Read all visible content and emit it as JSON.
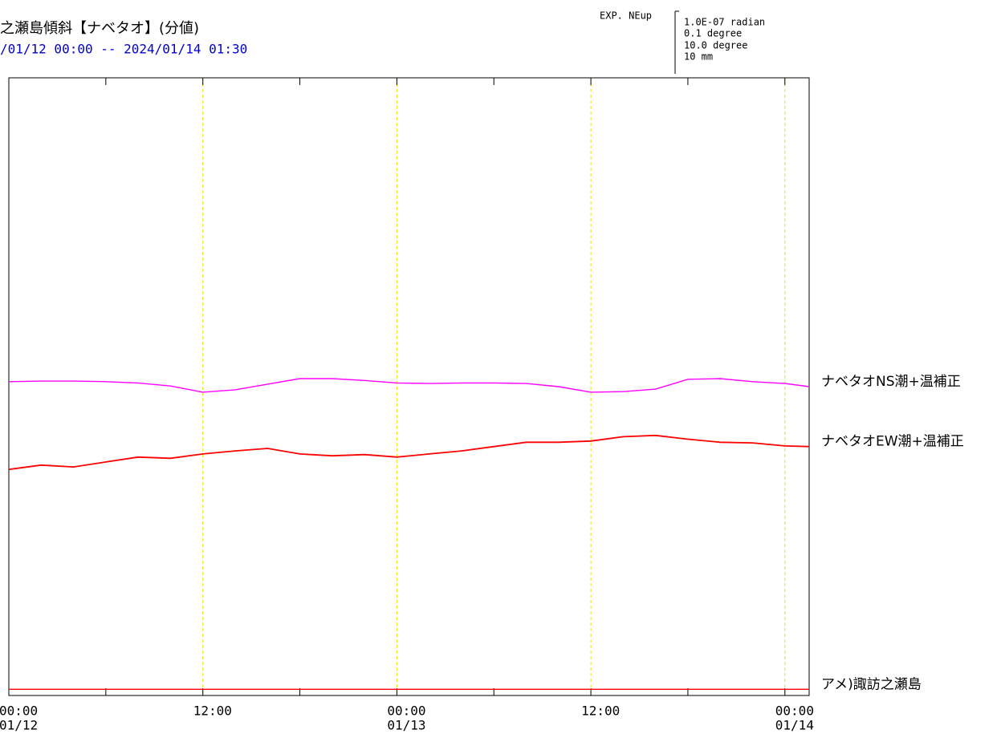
{
  "chart_data": {
    "type": "line",
    "title": "之瀬島傾斜【ナベタオ】(分値)",
    "subtitle": "/01/12 00:00 -- 2024/01/14 01:30",
    "scale_legend": {
      "label": "EXP. NEup",
      "lines": [
        "1.0E-07 radian",
        "0.1  degree",
        "10.0 degree",
        "10 mm"
      ]
    },
    "x": [
      0,
      2,
      4,
      6,
      8,
      10,
      12,
      14,
      16,
      18,
      20,
      22,
      24,
      26,
      28,
      30,
      32,
      34,
      36,
      38,
      40,
      42,
      44,
      46,
      48,
      49.5
    ],
    "xlim": [
      0,
      49.5
    ],
    "xticks": [
      {
        "value": 0,
        "label": "00:00",
        "date": "01/12"
      },
      {
        "value": 12,
        "label": "12:00"
      },
      {
        "value": 24,
        "label": "00:00",
        "date": "01/13"
      },
      {
        "value": 36,
        "label": "12:00"
      },
      {
        "value": 48,
        "label": "00:00",
        "date": "01/14"
      }
    ],
    "minor_xticks": [
      6,
      18,
      30,
      42
    ],
    "ylim": [
      0,
      100
    ],
    "grid": true,
    "grid_color": "#e8e800",
    "series": [
      {
        "name": "ナベタオNS潮+温補正",
        "color": "#ff00ff",
        "values": [
          50.8,
          50.9,
          50.9,
          50.8,
          50.6,
          50.1,
          49.1,
          49.5,
          50.4,
          51.3,
          51.3,
          51.0,
          50.6,
          50.5,
          50.6,
          50.6,
          50.5,
          50.0,
          49.1,
          49.2,
          49.6,
          51.2,
          51.3,
          50.8,
          50.5,
          50.0
        ]
      },
      {
        "name": "ナベタオEW潮+温補正",
        "color": "#ff0000",
        "values": [
          36.6,
          37.3,
          37.0,
          37.8,
          38.6,
          38.4,
          39.1,
          39.6,
          40.0,
          39.1,
          38.8,
          39.0,
          38.6,
          39.1,
          39.6,
          40.3,
          41.0,
          41.0,
          41.2,
          41.9,
          42.1,
          41.5,
          41.0,
          40.9,
          40.4,
          40.3
        ]
      },
      {
        "name": "アメ)諏訪之瀬島",
        "color": "#ff0000",
        "values": [
          1.0,
          1.0,
          1.0,
          1.0,
          1.0,
          1.0,
          1.0,
          1.0,
          1.0,
          1.0,
          1.0,
          1.0,
          1.0,
          1.0,
          1.0,
          1.0,
          1.0,
          1.0,
          1.0,
          1.0,
          1.0,
          1.0,
          1.0,
          1.0,
          1.0,
          1.0
        ]
      }
    ]
  }
}
